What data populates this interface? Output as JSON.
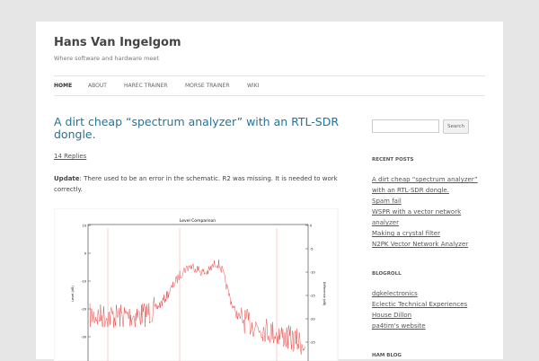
{
  "header": {
    "title": "Hans Van Ingelgom",
    "tagline": "Where software and hardware meet"
  },
  "nav": [
    "HOME",
    "ABOUT",
    "HAREC TRAINER",
    "MORSE TRAINER",
    "WIKI"
  ],
  "post": {
    "title": "A dirt cheap “spectrum analyzer” with an RTL-SDR dongle.",
    "replies": "14 Replies",
    "update": {
      "bold": "Update",
      "text": ": There used to be an error in the schematic. R2 was missing. It is needed to work correctly."
    },
    "figure": {
      "title": "Level Comparison",
      "y_label": "Level (dB)",
      "y2_label": "Difference (dB)",
      "yticks": [
        "10",
        "0",
        "-10",
        "-20",
        "-30"
      ],
      "y2ticks": [
        "0",
        "-5",
        "-10",
        "-15",
        "-20",
        "-25"
      ]
    }
  },
  "sidebar": {
    "search_button": "Search",
    "sections": [
      {
        "heading": "RECENT POSTS",
        "links": [
          "A dirt cheap “spectrum analyzer” with an RTL-SDR dongle.",
          "Spam fail",
          "WSPR with a vector network analyzer",
          "Making a crystal filter",
          "N2PK Vector Network Analyzer"
        ]
      },
      {
        "heading": "BLOGROLL",
        "links": [
          "dgkelectronics",
          "Eclectic Technical Experiences",
          "House Dillon",
          "pa4tim's website"
        ]
      },
      {
        "heading": "HAM BLOG",
        "links": []
      }
    ]
  }
}
